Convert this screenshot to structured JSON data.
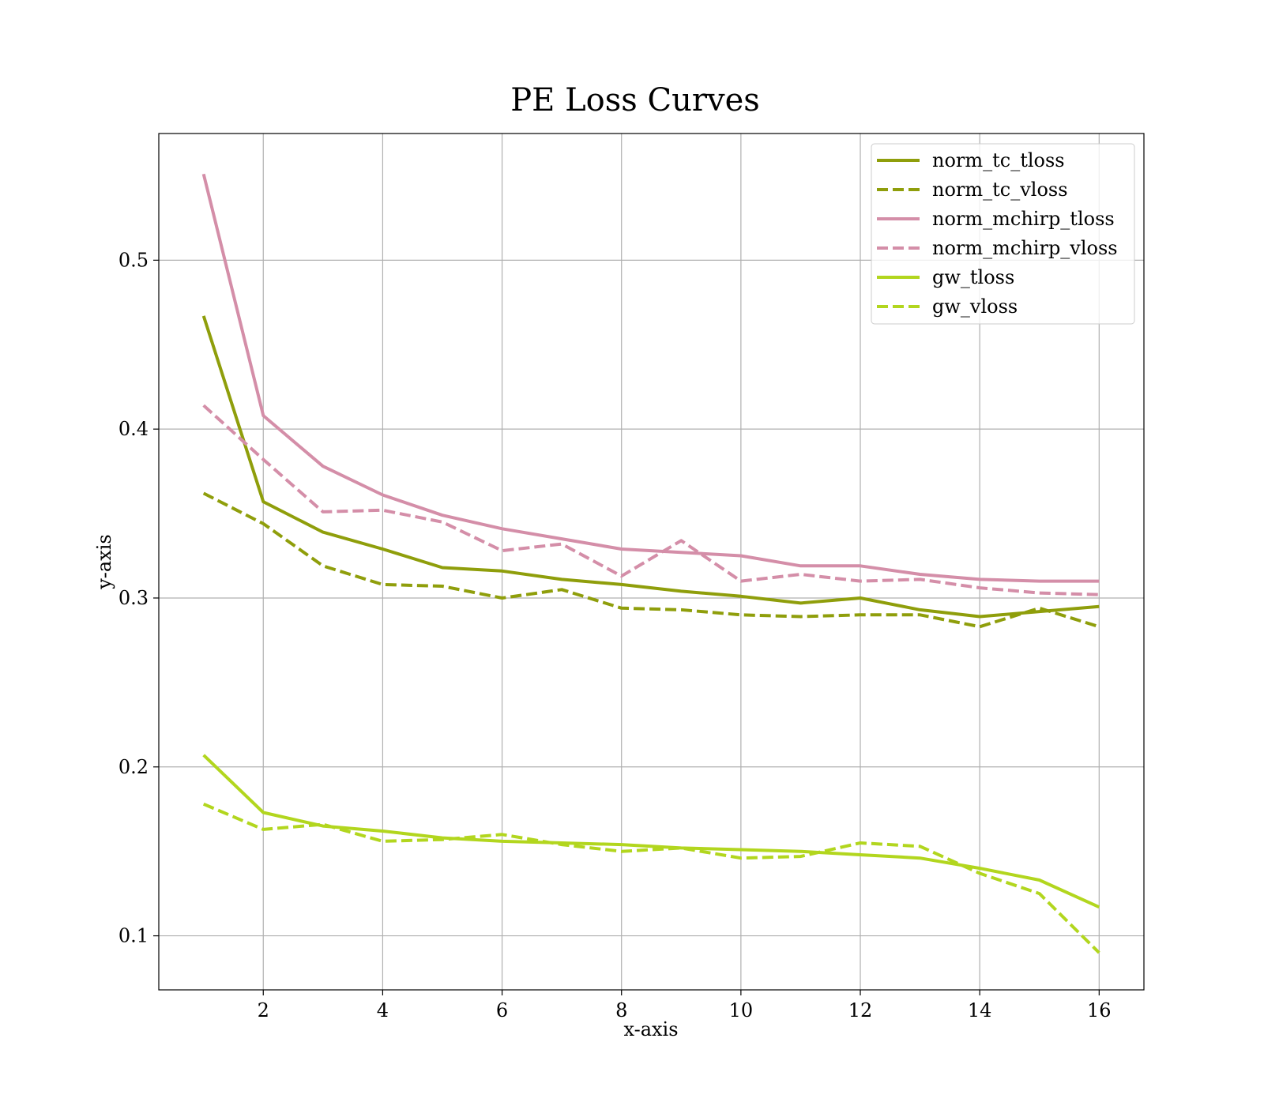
{
  "chart_data": {
    "type": "line",
    "title": "PE Loss Curves",
    "xlabel": "x-axis",
    "ylabel": "y-axis",
    "xlim": [
      0.25,
      16.75
    ],
    "ylim": [
      0.068,
      0.575
    ],
    "xticks": [
      2,
      4,
      6,
      8,
      10,
      12,
      14,
      16
    ],
    "yticks": [
      0.1,
      0.2,
      0.3,
      0.4,
      0.5
    ],
    "ytick_labels": [
      "0.1",
      "0.2",
      "0.3",
      "0.4",
      "0.5"
    ],
    "grid": true,
    "legend_position": "top-right",
    "x": [
      1,
      2,
      3,
      4,
      5,
      6,
      7,
      8,
      9,
      10,
      11,
      12,
      13,
      14,
      15,
      16
    ],
    "series": [
      {
        "name": "norm_tc_tloss",
        "color": "#8f9e0b",
        "dashed": false,
        "values": [
          0.467,
          0.357,
          0.339,
          0.329,
          0.318,
          0.316,
          0.311,
          0.308,
          0.304,
          0.301,
          0.297,
          0.3,
          0.293,
          0.289,
          0.292,
          0.295
        ]
      },
      {
        "name": "norm_tc_vloss",
        "color": "#8f9e0b",
        "dashed": true,
        "values": [
          0.362,
          0.344,
          0.319,
          0.308,
          0.307,
          0.3,
          0.305,
          0.294,
          0.293,
          0.29,
          0.289,
          0.29,
          0.29,
          0.283,
          0.294,
          0.283
        ]
      },
      {
        "name": "norm_mchirp_tloss",
        "color": "#d48ea8",
        "dashed": false,
        "values": [
          0.551,
          0.408,
          0.378,
          0.361,
          0.349,
          0.341,
          0.335,
          0.329,
          0.327,
          0.325,
          0.319,
          0.319,
          0.314,
          0.311,
          0.31,
          0.31
        ]
      },
      {
        "name": "norm_mchirp_vloss",
        "color": "#d48ea8",
        "dashed": true,
        "values": [
          0.414,
          0.382,
          0.351,
          0.352,
          0.345,
          0.328,
          0.332,
          0.313,
          0.334,
          0.31,
          0.314,
          0.31,
          0.311,
          0.306,
          0.303,
          0.302
        ]
      },
      {
        "name": "gw_tloss",
        "color": "#b2d61e",
        "dashed": false,
        "values": [
          0.207,
          0.173,
          0.165,
          0.162,
          0.158,
          0.156,
          0.155,
          0.154,
          0.152,
          0.151,
          0.15,
          0.148,
          0.146,
          0.14,
          0.133,
          0.117
        ]
      },
      {
        "name": "gw_vloss",
        "color": "#b2d61e",
        "dashed": true,
        "values": [
          0.178,
          0.163,
          0.166,
          0.156,
          0.157,
          0.16,
          0.154,
          0.15,
          0.152,
          0.146,
          0.147,
          0.155,
          0.153,
          0.137,
          0.125,
          0.09
        ]
      }
    ]
  }
}
